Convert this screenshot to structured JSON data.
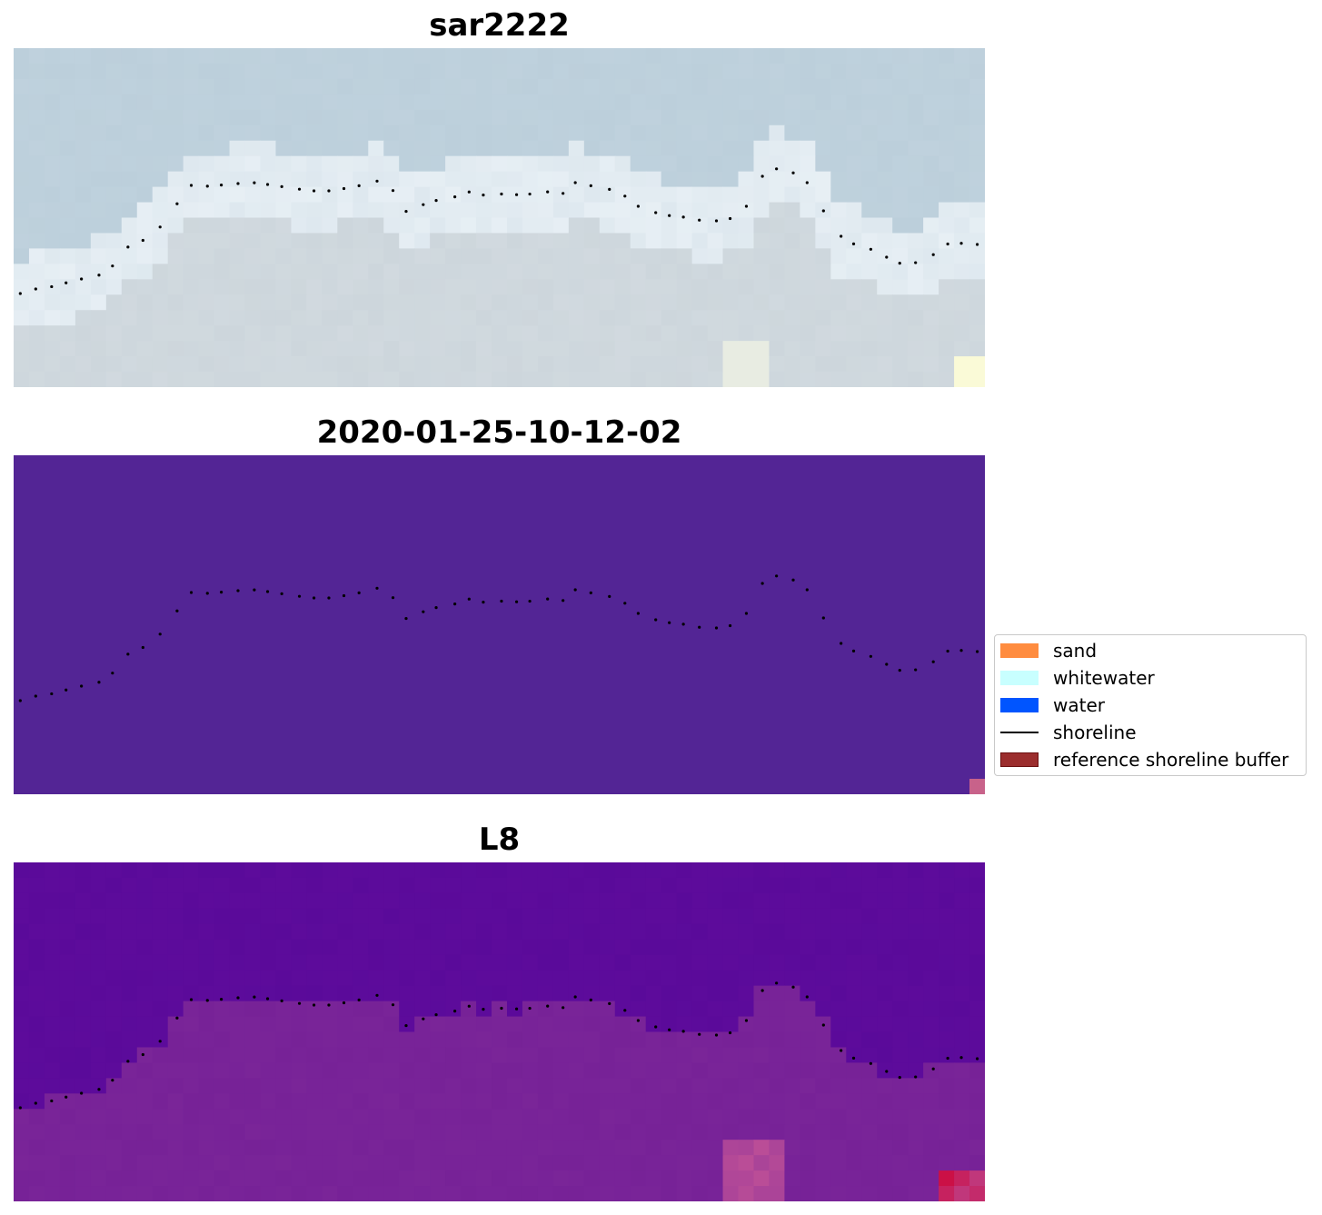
{
  "panels": [
    {
      "id": "sar",
      "title": "sar2222",
      "style": "rgb-imagery"
    },
    {
      "id": "classified",
      "title": "2020-01-25-10-12-02",
      "style": "classified"
    },
    {
      "id": "index",
      "title": "L8",
      "style": "index-map"
    }
  ],
  "legend": {
    "items": [
      {
        "label": "sand",
        "type": "patch",
        "color": "#ff8c3f",
        "border": "#ff8c3f"
      },
      {
        "label": "whitewater",
        "type": "patch",
        "color": "#c8ffff",
        "border": "#c8ffff"
      },
      {
        "label": "water",
        "type": "patch",
        "color": "#0055ff",
        "border": "#0055ff"
      },
      {
        "label": "shoreline",
        "type": "line",
        "color": "#000000"
      },
      {
        "label": "reference shoreline buffer",
        "type": "patch",
        "color": "#9b2d2d",
        "border": "#6b1010"
      }
    ]
  },
  "colors": {
    "classified_background": "#532595",
    "classified_corner": "#c8628a",
    "sar_sky": "#bccfdb",
    "sar_bright": "#f0f6fa",
    "index_dark": "#5a0a9a",
    "index_light": "#7f2a9a",
    "index_hot": "#d02060"
  }
}
